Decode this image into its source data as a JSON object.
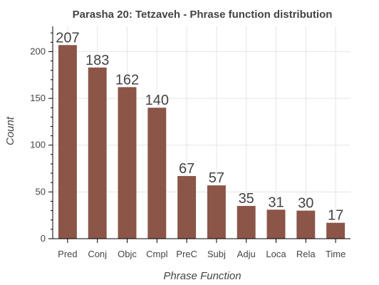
{
  "chart_data": {
    "type": "bar",
    "title": "Parasha 20: Tetzaveh - Phrase function distribution",
    "xlabel": "Phrase Function",
    "ylabel": "Count",
    "categories": [
      "Pred",
      "Conj",
      "Objc",
      "Cmpl",
      "PreC",
      "Subj",
      "Adju",
      "Loca",
      "Rela",
      "Time"
    ],
    "values": [
      207,
      183,
      162,
      140,
      67,
      57,
      35,
      31,
      30,
      17
    ],
    "ylim": [
      0,
      227
    ],
    "yticks": [
      0,
      50,
      100,
      150,
      200
    ],
    "grid": true,
    "bar_color": "#8b5548",
    "data_labels": true
  }
}
